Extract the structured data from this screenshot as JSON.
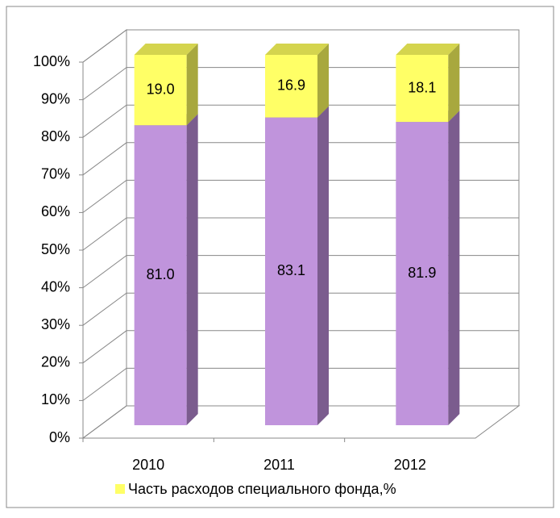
{
  "chart_data": {
    "type": "bar3d_stacked",
    "categories": [
      "2010",
      "2011",
      "2012"
    ],
    "series": [
      {
        "color": "#c094dc",
        "side_color": "#7b5c8e",
        "values": [
          81.0,
          83.1,
          81.9
        ],
        "value_labels": [
          "81.0",
          "83.1",
          "81.9"
        ]
      },
      {
        "name": "Часть расходов специального фонда,%",
        "color": "#ffff66",
        "side_color": "#a8a83e",
        "top_color": "#d4d44e",
        "values": [
          19.0,
          16.9,
          18.1
        ],
        "value_labels": [
          "19.0",
          "16.9",
          "18.1"
        ]
      }
    ],
    "ylim": [
      0,
      100
    ],
    "yticks": [
      {
        "value": 0,
        "label": "0%"
      },
      {
        "value": 10,
        "label": "10%"
      },
      {
        "value": 20,
        "label": "20%"
      },
      {
        "value": 30,
        "label": "30%"
      },
      {
        "value": 40,
        "label": "40%"
      },
      {
        "value": 50,
        "label": "50%"
      },
      {
        "value": 60,
        "label": "60%"
      },
      {
        "value": 70,
        "label": "70%"
      },
      {
        "value": 80,
        "label": "80%"
      },
      {
        "value": 90,
        "label": "90%"
      },
      {
        "value": 100,
        "label": "100%"
      }
    ],
    "grid": true,
    "legend": "bottom"
  }
}
